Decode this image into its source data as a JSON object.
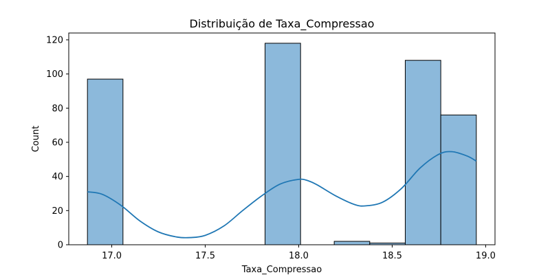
{
  "chart_data": {
    "type": "bar",
    "title": "Distribuição de Taxa_Compressao",
    "xlabel": "Taxa_Compressao",
    "ylabel": "Count",
    "xlim": [
      16.77,
      19.05
    ],
    "ylim": [
      0,
      124
    ],
    "xticks": [
      17.0,
      17.5,
      18.0,
      18.5,
      19.0
    ],
    "xtick_labels": [
      "17.0",
      "17.5",
      "18.0",
      "18.5",
      "19.0"
    ],
    "yticks": [
      0,
      20,
      40,
      60,
      80,
      100,
      120
    ],
    "ytick_labels": [
      "0",
      "20",
      "40",
      "60",
      "80",
      "100",
      "120"
    ],
    "bins": [
      {
        "x0": 16.87,
        "x1": 17.06,
        "count": 97
      },
      {
        "x0": 17.06,
        "x1": 17.25,
        "count": 0
      },
      {
        "x0": 17.25,
        "x1": 17.44,
        "count": 0
      },
      {
        "x0": 17.44,
        "x1": 17.63,
        "count": 0
      },
      {
        "x0": 17.63,
        "x1": 17.82,
        "count": 0
      },
      {
        "x0": 17.82,
        "x1": 18.01,
        "count": 118
      },
      {
        "x0": 18.01,
        "x1": 18.19,
        "count": 0
      },
      {
        "x0": 18.19,
        "x1": 18.38,
        "count": 2
      },
      {
        "x0": 18.38,
        "x1": 18.57,
        "count": 1
      },
      {
        "x0": 18.57,
        "x1": 18.76,
        "count": 108
      },
      {
        "x0": 18.76,
        "x1": 18.95,
        "count": 76
      }
    ],
    "kde": {
      "x": [
        16.87,
        16.95,
        17.05,
        17.15,
        17.25,
        17.35,
        17.42,
        17.5,
        17.6,
        17.7,
        17.8,
        17.9,
        18.0,
        18.05,
        18.1,
        18.2,
        18.3,
        18.36,
        18.45,
        18.55,
        18.65,
        18.75,
        18.82,
        18.9,
        18.95
      ],
      "y": [
        31,
        29.5,
        23,
        14,
        7.5,
        4.5,
        4.2,
        5.5,
        11,
        20,
        28.5,
        35.5,
        38.3,
        37.5,
        35,
        28.5,
        23.5,
        22.8,
        25,
        33,
        45,
        53,
        54.5,
        52,
        49
      ]
    },
    "grid": false
  }
}
